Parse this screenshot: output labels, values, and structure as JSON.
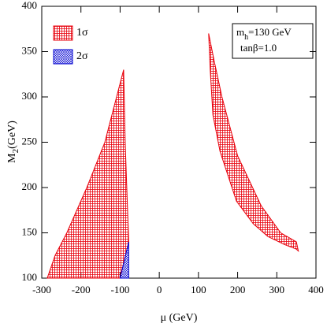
{
  "chart_data": {
    "type": "area",
    "x_label": "μ (GeV)",
    "y_label": {
      "main": "M",
      "sub": "2",
      "rest": "(GeV)"
    },
    "annotations": {
      "m": "m",
      "m_sub": "h",
      "m_rest": "=130 GeV",
      "tanb": "tanβ=1.0"
    },
    "xlim": [
      -300,
      400
    ],
    "xticks": [
      -300,
      -200,
      -100,
      0,
      100,
      200,
      300,
      400
    ],
    "ylim": [
      100,
      400
    ],
    "yticks": [
      100,
      150,
      200,
      250,
      300,
      350,
      400
    ],
    "series": [
      {
        "name": "1σ",
        "color": "#e8000b",
        "x": [
          -286,
          -266,
          -236,
          -185,
          -139,
          -109,
          -91,
          -87,
          -83,
          -78,
          -100,
          null,
          126,
          130,
          137,
          155,
          197,
          240,
          277,
          320,
          350,
          355,
          350,
          310,
          260,
          200,
          160,
          140
        ],
        "y": [
          100,
          125,
          150,
          200,
          250,
          300,
          330,
          250,
          200,
          140,
          100,
          null,
          370,
          330,
          280,
          240,
          185,
          160,
          146,
          137,
          132,
          130,
          140,
          150,
          180,
          235,
          300,
          340
        ]
      },
      {
        "name": "2σ",
        "color": "#0000d0",
        "x": [
          -100,
          -78,
          -78
        ],
        "y": [
          100,
          140,
          100
        ]
      }
    ]
  }
}
